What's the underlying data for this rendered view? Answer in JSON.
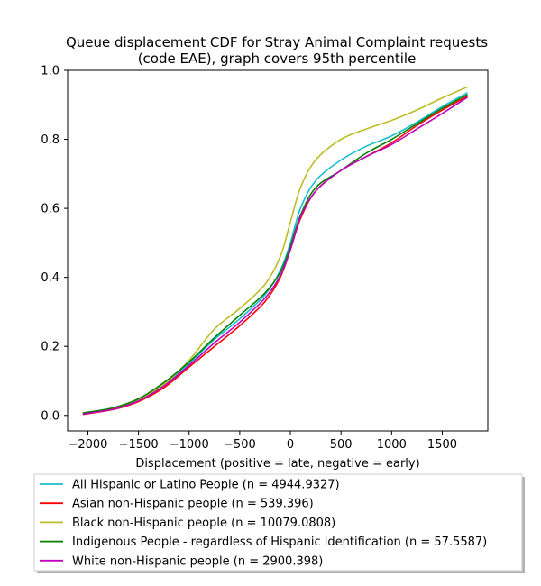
{
  "chart_data": {
    "type": "line",
    "title": [
      "Queue displacement CDF for Stray Animal Complaint  requests",
      "(code EAE), graph covers 95th percentile"
    ],
    "xlabel": "Displacement (positive = late, negative = early)",
    "ylabel": "",
    "xlim": [
      -2200,
      1950
    ],
    "ylim": [
      -0.045,
      1.0
    ],
    "xticks": [
      -2000,
      -1500,
      -1000,
      -500,
      0,
      500,
      1000,
      1500
    ],
    "yticks": [
      0.0,
      0.2,
      0.4,
      0.6,
      0.8,
      1.0
    ],
    "xtick_labels": [
      "−2000",
      "−1500",
      "−1000",
      "−500",
      "0",
      "500",
      "1000",
      "1500"
    ],
    "ytick_labels": [
      "0.0",
      "0.2",
      "0.4",
      "0.6",
      "0.8",
      "1.0"
    ],
    "grid": false,
    "legend_position": "below",
    "series": [
      {
        "name": "All Hispanic or Latino People (n = 4944.9327)",
        "color": "#17becf",
        "x": [
          -2050,
          -1750,
          -1500,
          -1250,
          -1000,
          -750,
          -500,
          -250,
          -100,
          0,
          100,
          250,
          500,
          750,
          1000,
          1250,
          1500,
          1750
        ],
        "y": [
          0.005,
          0.02,
          0.045,
          0.09,
          0.15,
          0.22,
          0.28,
          0.35,
          0.42,
          0.5,
          0.6,
          0.68,
          0.74,
          0.78,
          0.81,
          0.85,
          0.895,
          0.935
        ]
      },
      {
        "name": "Asian non-Hispanic people (n = 539.396)",
        "color": "#ff0000",
        "x": [
          -2050,
          -1750,
          -1500,
          -1250,
          -1000,
          -750,
          -500,
          -250,
          -100,
          0,
          100,
          250,
          500,
          750,
          1000,
          1250,
          1500,
          1750
        ],
        "y": [
          0.003,
          0.017,
          0.04,
          0.08,
          0.14,
          0.2,
          0.26,
          0.33,
          0.4,
          0.48,
          0.57,
          0.65,
          0.71,
          0.75,
          0.79,
          0.84,
          0.885,
          0.925
        ]
      },
      {
        "name": "Black non-Hispanic people (n = 10079.0808)",
        "color": "#bcbd22",
        "x": [
          -2050,
          -1750,
          -1500,
          -1250,
          -1000,
          -750,
          -500,
          -250,
          -100,
          0,
          100,
          250,
          500,
          750,
          1000,
          1250,
          1500,
          1750
        ],
        "y": [
          0.006,
          0.02,
          0.045,
          0.09,
          0.16,
          0.25,
          0.31,
          0.38,
          0.46,
          0.56,
          0.66,
          0.74,
          0.8,
          0.83,
          0.855,
          0.885,
          0.92,
          0.952
        ]
      },
      {
        "name": "Indigenous People - regardless of Hispanic identification (n = 57.5587)",
        "color": "#008000",
        "x": [
          -2050,
          -1750,
          -1500,
          -1250,
          -1000,
          -750,
          -500,
          -250,
          -100,
          0,
          100,
          250,
          500,
          750,
          1000,
          1250,
          1500,
          1750
        ],
        "y": [
          0.007,
          0.022,
          0.048,
          0.095,
          0.155,
          0.225,
          0.29,
          0.355,
          0.415,
          0.49,
          0.58,
          0.66,
          0.71,
          0.76,
          0.8,
          0.845,
          0.89,
          0.93
        ]
      },
      {
        "name": "White non-Hispanic people (n = 2900.398)",
        "color": "#bf00bf",
        "x": [
          -2050,
          -1750,
          -1500,
          -1250,
          -1000,
          -750,
          -500,
          -250,
          -100,
          0,
          100,
          250,
          500,
          750,
          1000,
          1250,
          1500,
          1750
        ],
        "y": [
          0.004,
          0.018,
          0.042,
          0.085,
          0.145,
          0.21,
          0.27,
          0.34,
          0.405,
          0.48,
          0.575,
          0.65,
          0.71,
          0.75,
          0.785,
          0.83,
          0.875,
          0.922
        ]
      }
    ]
  }
}
